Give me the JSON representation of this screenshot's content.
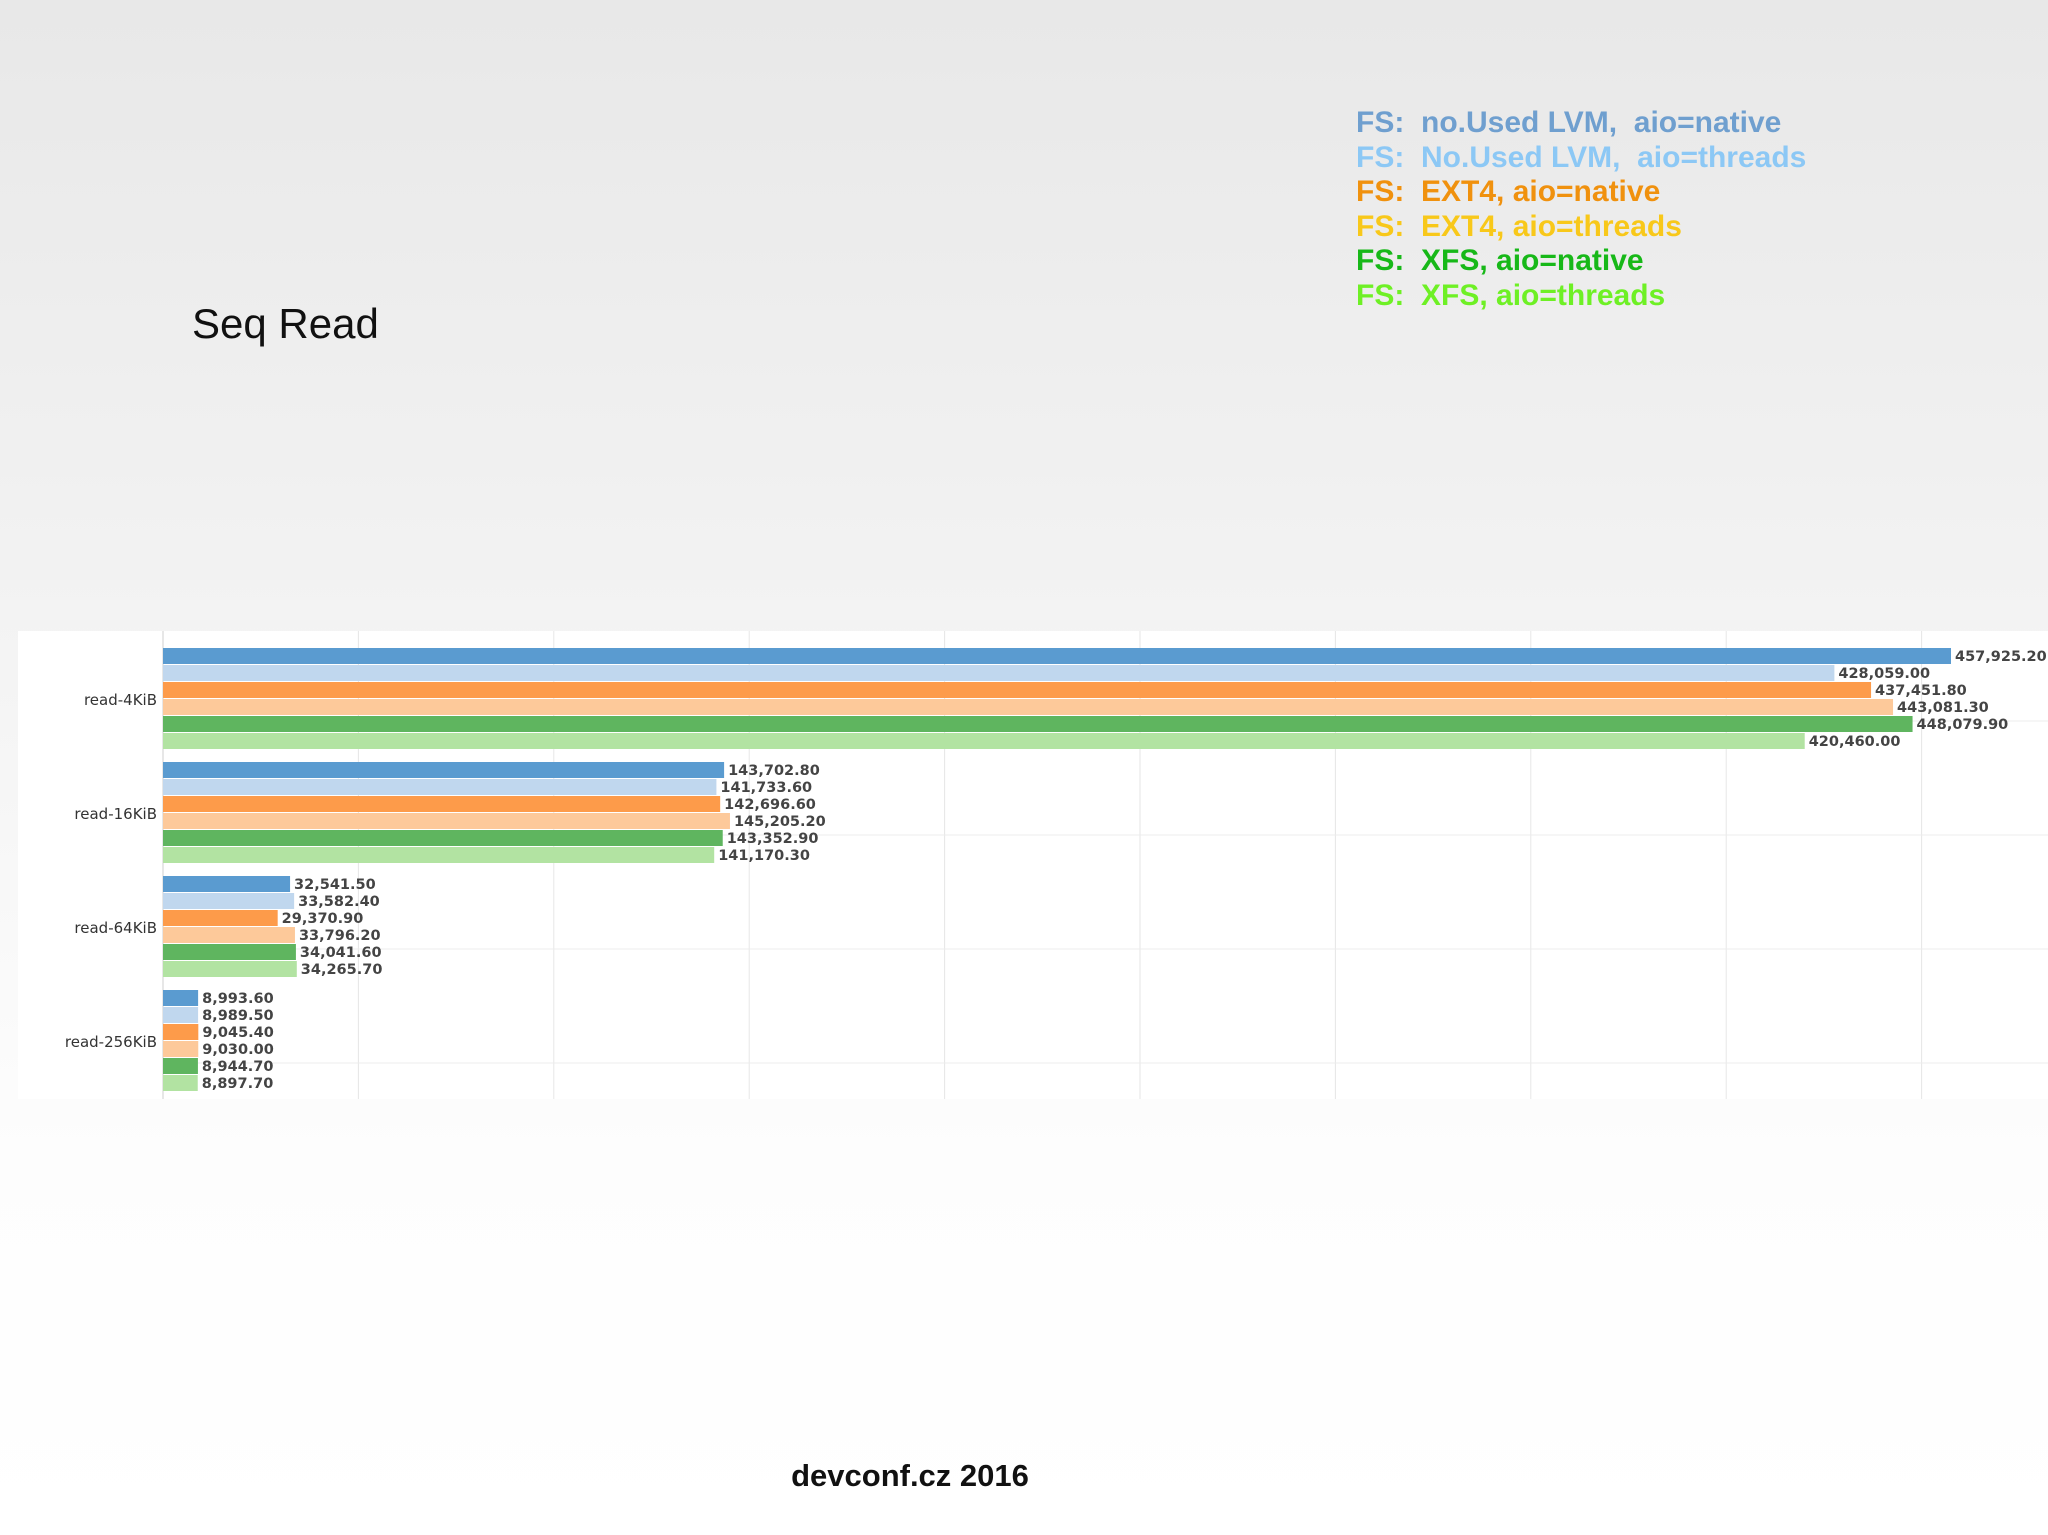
{
  "slide": {
    "title": "Seq Read",
    "footer": "devconf.cz 2016"
  },
  "legend": [
    {
      "label": "FS:  no.Used LVM,  aio=native",
      "color": "#6f9fcf"
    },
    {
      "label": "FS:  No.Used LVM,  aio=threads",
      "color": "#8cc8f5"
    },
    {
      "label": "FS:  EXT4, aio=native",
      "color": "#f0910e"
    },
    {
      "label": "FS:  EXT4, aio=threads",
      "color": "#f8c81a"
    },
    {
      "label": "FS:  XFS, aio=native",
      "color": "#17b818"
    },
    {
      "label": "FS:  XFS, aio=threads",
      "color": "#6ef025"
    }
  ],
  "chart_data": {
    "type": "bar",
    "orientation": "horizontal",
    "categories": [
      "read-4KiB",
      "read-16KiB",
      "read-64KiB",
      "read-256KiB"
    ],
    "series": [
      {
        "color": "#5a9bd0",
        "values": [
          457925.2,
          143702.8,
          32541.5,
          8993.6
        ],
        "labels": [
          "457,925.20",
          "143,702.80",
          "32,541.50",
          "8,993.60"
        ]
      },
      {
        "color": "#c0d7ee",
        "values": [
          428059.0,
          141733.6,
          33582.4,
          8989.5
        ],
        "labels": [
          "428,059.00",
          "141,733.60",
          "33,582.40",
          "8,989.50"
        ]
      },
      {
        "color": "#fd9b4a",
        "values": [
          437451.8,
          142696.6,
          29370.9,
          9045.4
        ],
        "labels": [
          "437,451.80",
          "142,696.60",
          "29,370.90",
          "9,045.40"
        ]
      },
      {
        "color": "#fdc99a",
        "values": [
          443081.3,
          145205.2,
          33796.2,
          9030.0
        ],
        "labels": [
          "443,081.30",
          "145,205.20",
          "33,796.20",
          "9,030.00"
        ]
      },
      {
        "color": "#5fb55f",
        "values": [
          448079.9,
          143352.9,
          34041.6,
          8944.7
        ],
        "labels": [
          "448,079.90",
          "143,352.90",
          "34,041.60",
          "8,944.70"
        ]
      },
      {
        "color": "#b2e3a2",
        "values": [
          420460.0,
          141170.3,
          34265.7,
          8897.7
        ],
        "labels": [
          "420,460.00",
          "141,170.30",
          "34,265.70",
          "8,897.70"
        ]
      }
    ],
    "grid": true,
    "legend_position": "top-right"
  }
}
